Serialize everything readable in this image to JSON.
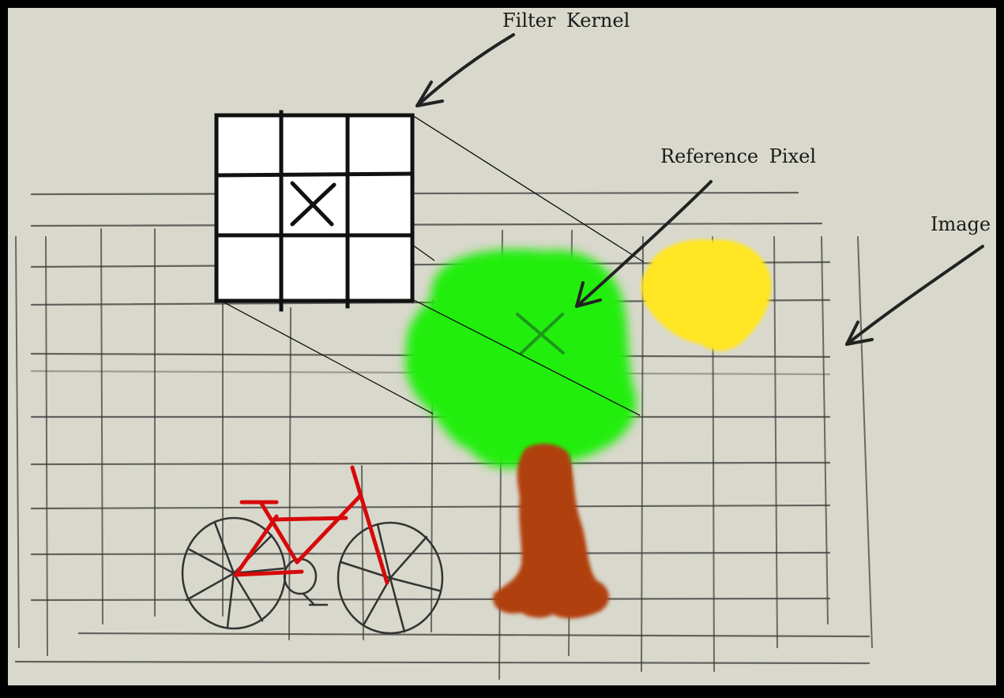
{
  "diagram": {
    "labels": {
      "filter_kernel": "Filter Kernel",
      "reference_pixel": "Reference Pixel",
      "image": "Image"
    },
    "kernel": {
      "rows": 3,
      "cols": 3,
      "center_mark": "X"
    },
    "image_grid": {
      "columns": 13,
      "rows": 10
    },
    "objects": [
      "bicycle-drawing",
      "tree-drawing",
      "sun-drawing"
    ],
    "colors": {
      "background": "#d9d8cc",
      "frame": "#000000",
      "grid_line": "#3a3a3a",
      "kernel_fill": "#ffffff",
      "tree_foliage": "#22ee11",
      "tree_trunk": "#b0400d",
      "sun": "#ffe521",
      "bicycle_frame": "#d60a0a",
      "bicycle_wheel": "#333333"
    }
  }
}
